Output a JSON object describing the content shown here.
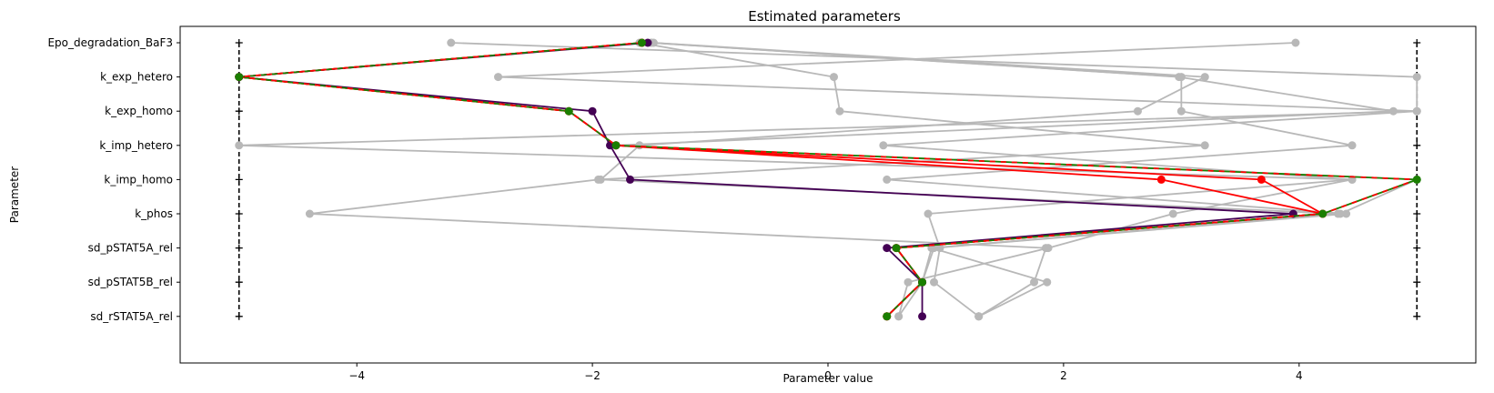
{
  "chart_data": {
    "type": "line",
    "title": "Estimated parameters",
    "xlabel": "Parameter value",
    "ylabel": "Parameter",
    "xlim": [
      -5.5,
      5.5
    ],
    "xticks": [
      -4,
      -2,
      0,
      2,
      4
    ],
    "xtick_labels": [
      "−4",
      "−2",
      "0",
      "2",
      "4"
    ],
    "parameters": [
      "Epo_degradation_BaF3",
      "k_exp_hetero",
      "k_exp_homo",
      "k_imp_hetero",
      "k_imp_homo",
      "k_phos",
      "sd_pSTAT5A_rel",
      "sd_pSTAT5B_rel",
      "sd_rSTAT5A_rel"
    ],
    "bounds": {
      "lower": [
        -5,
        -5,
        -5,
        -5,
        -5,
        -5,
        -5,
        -5,
        -5
      ],
      "upper": [
        5,
        5,
        5,
        5,
        5,
        5,
        5,
        5,
        5
      ]
    },
    "grid": false,
    "legend": "none",
    "colors": {
      "gray": "#b8b8b8",
      "red": "#ff0000",
      "purple": "#440154",
      "green": "#1a7f00",
      "bounds": "#000000"
    },
    "series": [
      {
        "color": "#b8b8b8",
        "values": [
          -3.2,
          5.0,
          5.0,
          -5.0,
          4.45,
          0.85,
          0.95,
          0.9,
          1.28
        ]
      },
      {
        "color": "#b8b8b8",
        "values": [
          -1.6,
          0.05,
          0.1,
          3.2,
          -1.95,
          -4.4,
          1.85,
          1.75,
          1.28
        ]
      },
      {
        "color": "#b8b8b8",
        "values": [
          -1.5,
          3.0,
          3.0,
          4.45,
          0.5,
          4.4,
          0.9,
          0.8,
          0.6
        ]
      },
      {
        "color": "#b8b8b8",
        "values": [
          3.97,
          -2.8,
          5.0,
          0.47,
          4.45,
          2.93,
          1.87,
          0.68,
          0.6
        ]
      },
      {
        "color": "#b8b8b8",
        "values": [
          -1.48,
          3.2,
          2.63,
          -1.6,
          -1.93,
          4.33,
          0.88,
          1.86,
          1.28
        ]
      },
      {
        "color": "#b8b8b8",
        "values": [
          -1.5,
          2.98,
          4.8,
          -1.8,
          5.0,
          4.35,
          0.88,
          0.8,
          0.5
        ]
      },
      {
        "color": "#ff0000",
        "values": [
          -1.58,
          -5.0,
          -2.2,
          -1.8,
          2.83,
          4.2,
          0.58,
          0.8,
          0.5
        ]
      },
      {
        "color": "#ff0000",
        "values": [
          -1.58,
          -5.0,
          -2.2,
          -1.8,
          3.68,
          4.2,
          0.58,
          0.8,
          0.5
        ]
      },
      {
        "color": "#440154",
        "values": [
          -1.53,
          -5.0,
          -2.0,
          -1.85,
          -1.68,
          3.95,
          0.5,
          0.8,
          0.8
        ]
      },
      {
        "color": "#1a7f00",
        "dashed_red": true,
        "values": [
          -1.58,
          -5.0,
          -2.2,
          -1.8,
          5.0,
          4.2,
          0.58,
          0.8,
          0.5
        ]
      }
    ]
  }
}
